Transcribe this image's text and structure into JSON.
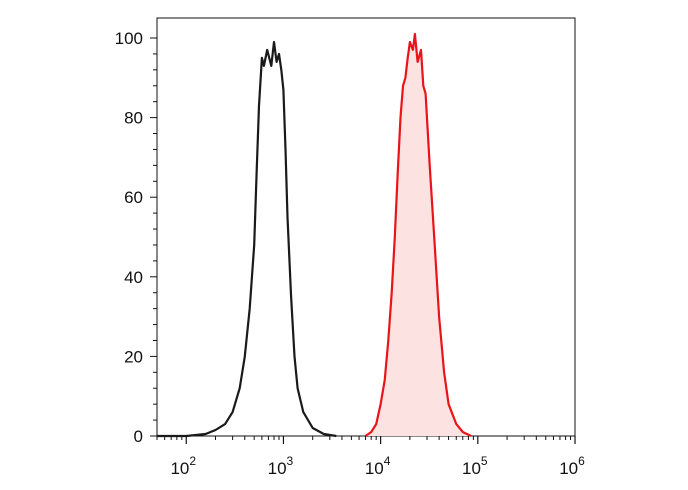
{
  "chart_data": {
    "type": "line",
    "title": "",
    "xlabel": "",
    "ylabel": "",
    "x_scale": "log",
    "xlim": [
      50,
      1000000
    ],
    "ylim": [
      0,
      100
    ],
    "x_ticks": [
      {
        "base": "10",
        "exp": "2",
        "value": 100
      },
      {
        "base": "10",
        "exp": "3",
        "value": 1000
      },
      {
        "base": "10",
        "exp": "4",
        "value": 10000
      },
      {
        "base": "10",
        "exp": "5",
        "value": 100000
      },
      {
        "base": "10",
        "exp": "6",
        "value": 1000000
      }
    ],
    "y_ticks": [
      {
        "label": "0",
        "value": 0
      },
      {
        "label": "20",
        "value": 20
      },
      {
        "label": "40",
        "value": 40
      },
      {
        "label": "60",
        "value": 60
      },
      {
        "label": "80",
        "value": 80
      },
      {
        "label": "100",
        "value": 100
      }
    ],
    "grid": false,
    "series": [
      {
        "color": "#1a1a1a",
        "fill": "none",
        "points": [
          [
            50,
            0
          ],
          [
            100,
            0
          ],
          [
            158,
            0.5
          ],
          [
            200,
            1.5
          ],
          [
            251,
            3
          ],
          [
            300,
            6
          ],
          [
            355,
            12
          ],
          [
            400,
            20
          ],
          [
            450,
            32
          ],
          [
            500,
            48
          ],
          [
            530,
            66
          ],
          [
            560,
            83
          ],
          [
            600,
            95
          ],
          [
            630,
            93
          ],
          [
            680,
            97
          ],
          [
            750,
            93
          ],
          [
            800,
            99
          ],
          [
            850,
            94
          ],
          [
            900,
            96
          ],
          [
            950,
            92
          ],
          [
            1000,
            87
          ],
          [
            1050,
            72
          ],
          [
            1100,
            55
          ],
          [
            1200,
            35
          ],
          [
            1300,
            20
          ],
          [
            1400,
            12
          ],
          [
            1600,
            6
          ],
          [
            2000,
            2
          ],
          [
            2600,
            0.5
          ],
          [
            3500,
            0
          ]
        ]
      },
      {
        "color": "#e8141a",
        "fill": "#fde2e2",
        "points": [
          [
            7000,
            0
          ],
          [
            8000,
            1
          ],
          [
            9000,
            3
          ],
          [
            10000,
            8
          ],
          [
            11000,
            14
          ],
          [
            12000,
            24
          ],
          [
            13000,
            36
          ],
          [
            14000,
            50
          ],
          [
            15000,
            66
          ],
          [
            16000,
            80
          ],
          [
            17000,
            88
          ],
          [
            18000,
            90
          ],
          [
            19000,
            95
          ],
          [
            20000,
            99
          ],
          [
            21500,
            97
          ],
          [
            22500,
            101
          ],
          [
            24000,
            94
          ],
          [
            26000,
            97
          ],
          [
            27500,
            88
          ],
          [
            29000,
            86
          ],
          [
            32000,
            68
          ],
          [
            36000,
            48
          ],
          [
            40000,
            30
          ],
          [
            45000,
            16
          ],
          [
            50000,
            8
          ],
          [
            60000,
            3
          ],
          [
            70000,
            1
          ],
          [
            85000,
            0
          ]
        ]
      }
    ]
  }
}
